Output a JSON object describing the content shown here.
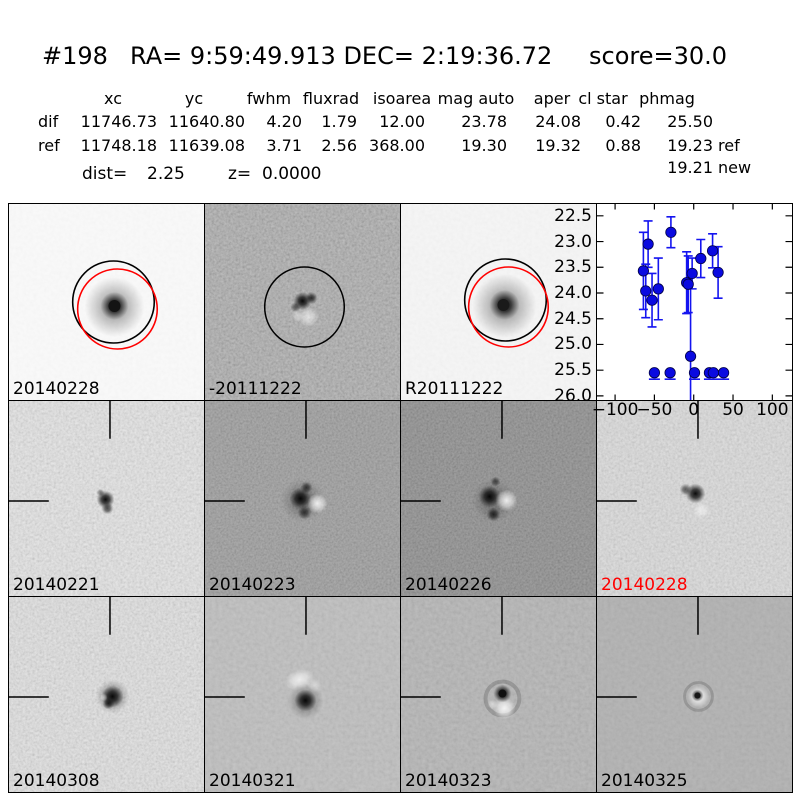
{
  "header": {
    "candidate_id": "#198",
    "coords": "RA= 9:59:49.913 DEC= 2:19:36.72",
    "score": "score=30.0"
  },
  "photometry": {
    "columns": [
      "xc",
      "yc",
      "fwhm",
      "fluxrad",
      "isoarea",
      "mag auto",
      "aper",
      "cl star",
      "phmag"
    ],
    "rows": [
      {
        "name": "dif",
        "values": [
          "11746.73",
          "11640.80",
          "4.20",
          "1.79",
          "12.00",
          "23.78",
          "24.08",
          "0.42",
          "25.50"
        ],
        "tag": ""
      },
      {
        "name": "ref",
        "values": [
          "11748.18",
          "11639.08",
          "3.71",
          "2.56",
          "368.00",
          "19.30",
          "19.32",
          "0.88",
          "19.23"
        ],
        "tag": "ref"
      }
    ],
    "extra_phmag": {
      "value": "19.21",
      "tag": "new"
    }
  },
  "distance": {
    "label": "dist=",
    "value": "2.25"
  },
  "redshift": {
    "label": "z=",
    "value": "0.0000"
  },
  "stamps": [
    {
      "label": "20140228",
      "label_color": "#000000"
    },
    {
      "label": "-20111222",
      "label_color": "#000000"
    },
    {
      "label": "R20111222",
      "label_color": "#000000"
    },
    {
      "label": "20140221",
      "label_color": "#000000"
    },
    {
      "label": "20140223",
      "label_color": "#000000"
    },
    {
      "label": "20140226",
      "label_color": "#000000"
    },
    {
      "label": "20140228",
      "label_color": "#ff0000"
    },
    {
      "label": "20140308",
      "label_color": "#000000"
    },
    {
      "label": "20140321",
      "label_color": "#000000"
    },
    {
      "label": "20140323",
      "label_color": "#000000"
    },
    {
      "label": "20140325",
      "label_color": "#000000"
    }
  ],
  "colors": {
    "marker_blue": "#0a0ae0",
    "errorbar_blue": "#1414f0",
    "aperture_red": "#ff0000",
    "axis_black": "#000000"
  },
  "chart_data": {
    "type": "scatter",
    "title": "",
    "xlabel": "",
    "ylabel": "",
    "x_unit": "days relative to detection",
    "y_unit": "magnitude",
    "grid": false,
    "legend": false,
    "y_inverted": true,
    "xlim": [
      -123,
      125
    ],
    "ylim": [
      26.08,
      22.27
    ],
    "xticks": [
      -100,
      -50,
      0,
      50,
      100
    ],
    "yticks": [
      22.5,
      23.0,
      23.5,
      24.0,
      24.5,
      25.0,
      25.5,
      26.0
    ],
    "marker_color": "#0a0ae0",
    "errorbar_color": "#1414f0",
    "series": [
      {
        "name": "detections",
        "points": [
          {
            "x": -64,
            "y": 23.57,
            "err": 0.75
          },
          {
            "x": -61,
            "y": 23.96,
            "err": 0.52
          },
          {
            "x": -58,
            "y": 23.05,
            "err": 0.45
          },
          {
            "x": -53,
            "y": 24.14,
            "err": 0.52
          },
          {
            "x": -45,
            "y": 23.92,
            "err": 0.6
          },
          {
            "x": -29,
            "y": 22.82,
            "err": 0.3
          },
          {
            "x": -9,
            "y": 23.8,
            "err": 0.6
          },
          {
            "x": -7,
            "y": 23.83,
            "err": 0.55
          },
          {
            "x": -2,
            "y": 23.62,
            "err": 0.3
          },
          {
            "x": 9,
            "y": 23.33,
            "err": 0.37
          },
          {
            "x": 24,
            "y": 23.18,
            "err": 0.33
          },
          {
            "x": 31,
            "y": 23.6,
            "err": 0.5
          },
          {
            "x": -4,
            "y": 25.23,
            "err_up": 1.6,
            "err_lo": 0.9
          }
        ]
      },
      {
        "name": "limits",
        "points": [
          {
            "x": -50,
            "y": 25.55
          },
          {
            "x": -30,
            "y": 25.55
          },
          {
            "x": 1,
            "y": 25.55
          },
          {
            "x": 20,
            "y": 25.55
          },
          {
            "x": 25,
            "y": 25.55
          },
          {
            "x": 38,
            "y": 25.55
          }
        ]
      }
    ]
  }
}
